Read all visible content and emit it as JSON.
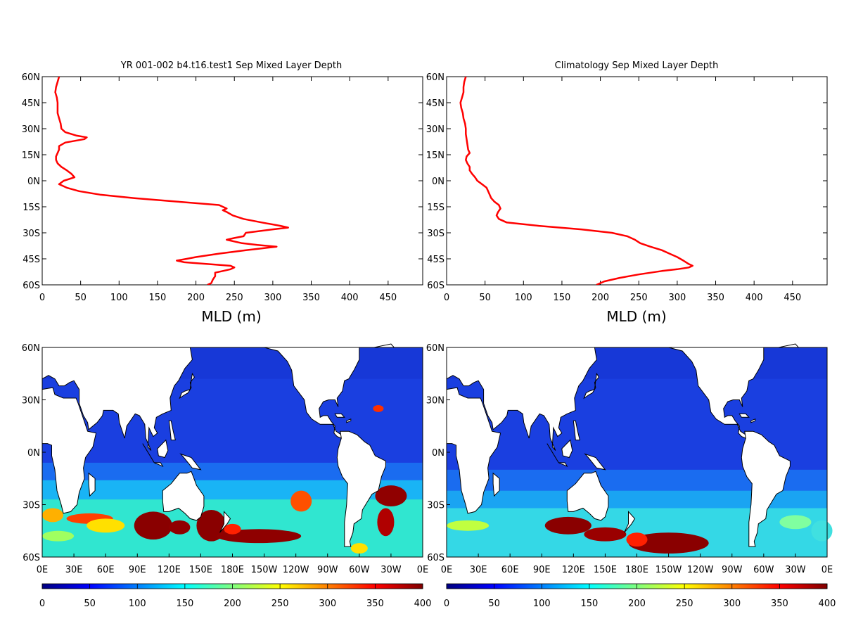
{
  "chart_data": [
    {
      "type": "line",
      "title": "YR 001-002 b4.t16.test1 Sep Mixed Layer Depth",
      "xlabel": "MLD (m)",
      "ylabel": "",
      "xlim": [
        0,
        495
      ],
      "ylim": [
        -60,
        60
      ],
      "xticks": [
        "0",
        "50",
        "100",
        "150",
        "200",
        "250",
        "300",
        "350",
        "400",
        "450"
      ],
      "yticks": [
        "60N",
        "45N",
        "30N",
        "15N",
        "0N",
        "15S",
        "30S",
        "45S",
        "60S"
      ],
      "line_color": "#ff0000",
      "series": [
        {
          "lat": [
            60,
            57,
            54,
            51,
            48,
            45,
            42,
            39,
            36,
            33,
            30,
            28,
            26,
            25,
            24,
            22,
            20,
            18,
            16,
            14,
            12,
            10,
            8,
            6,
            4,
            2,
            0,
            -2,
            -4,
            -6,
            -8,
            -10,
            -12,
            -14,
            -16,
            -17,
            -18,
            -20,
            -22,
            -24,
            -26,
            -27,
            -28,
            -30,
            -32,
            -33,
            -34,
            -36,
            -37,
            -38,
            -39,
            -40,
            -42,
            -44,
            -45,
            -46,
            -47,
            -48,
            -49,
            -50,
            -51,
            -52,
            -53,
            -55,
            -57,
            -59,
            -60
          ],
          "mld": [
            22,
            20,
            18,
            17,
            19,
            20,
            20,
            20,
            22,
            24,
            25,
            30,
            45,
            58,
            55,
            30,
            22,
            22,
            20,
            18,
            18,
            20,
            25,
            32,
            38,
            42,
            28,
            22,
            32,
            48,
            75,
            120,
            175,
            230,
            240,
            235,
            240,
            248,
            262,
            285,
            310,
            320,
            300,
            265,
            262,
            250,
            240,
            260,
            280,
            305,
            285,
            265,
            230,
            200,
            188,
            175,
            185,
            215,
            245,
            250,
            245,
            235,
            225,
            225,
            222,
            220,
            215
          ]
        }
      ]
    },
    {
      "type": "line",
      "title": "Climatology Sep Mixed Layer Depth",
      "xlabel": "MLD (m)",
      "ylabel": "",
      "xlim": [
        0,
        495
      ],
      "ylim": [
        -60,
        60
      ],
      "xticks": [
        "0",
        "50",
        "100",
        "150",
        "200",
        "250",
        "300",
        "350",
        "400",
        "450"
      ],
      "yticks": [
        "60N",
        "45N",
        "30N",
        "15N",
        "0N",
        "15S",
        "30S",
        "45S",
        "60S"
      ],
      "line_color": "#ff0000",
      "series": [
        {
          "lat": [
            60,
            57,
            54,
            51,
            48,
            45,
            42,
            39,
            36,
            33,
            30,
            27,
            24,
            21,
            18,
            16,
            14,
            12,
            10,
            8,
            6,
            4,
            2,
            0,
            -2,
            -4,
            -6,
            -8,
            -10,
            -12,
            -14,
            -16,
            -18,
            -20,
            -22,
            -24,
            -26,
            -28,
            -30,
            -32,
            -34,
            -36,
            -38,
            -40,
            -42,
            -44,
            -46,
            -48,
            -49,
            -50,
            -51,
            -52,
            -54,
            -56,
            -58,
            -60
          ],
          "mld": [
            25,
            23,
            22,
            22,
            20,
            18,
            19,
            21,
            22,
            24,
            25,
            25,
            26,
            27,
            28,
            30,
            26,
            25,
            27,
            30,
            30,
            33,
            37,
            40,
            46,
            52,
            54,
            56,
            58,
            62,
            68,
            70,
            67,
            65,
            68,
            78,
            120,
            175,
            215,
            235,
            245,
            252,
            265,
            280,
            290,
            300,
            308,
            315,
            320,
            315,
            300,
            280,
            250,
            225,
            205,
            195
          ]
        }
      ]
    },
    {
      "type": "heatmap",
      "title": "",
      "xticks": [
        "0E",
        "30E",
        "60E",
        "90E",
        "120E",
        "150E",
        "180E",
        "150W",
        "120W",
        "90W",
        "60W",
        "30W",
        "0E"
      ],
      "yticks": [
        "60N",
        "30N",
        "0N",
        "30S",
        "60S"
      ],
      "xlim": [
        0,
        360
      ],
      "ylim": [
        -60,
        60
      ],
      "colorbar": {
        "min": 0,
        "max": 400,
        "ticks": [
          "0",
          "50",
          "100",
          "150",
          "200",
          "250",
          "300",
          "350",
          "400"
        ]
      },
      "colormap": [
        "#00007f",
        "#0000ff",
        "#007fff",
        "#00ffff",
        "#7fff7f",
        "#ffff00",
        "#ff7f00",
        "#ff0000",
        "#7f0000"
      ]
    },
    {
      "type": "heatmap",
      "title": "",
      "xticks": [
        "0E",
        "30E",
        "60E",
        "90E",
        "120E",
        "150E",
        "180E",
        "150W",
        "120W",
        "90W",
        "60W",
        "30W",
        "0E"
      ],
      "yticks": [
        "60N",
        "30N",
        "0N",
        "30S",
        "60S"
      ],
      "xlim": [
        0,
        360
      ],
      "ylim": [
        -60,
        60
      ],
      "colorbar": {
        "min": 0,
        "max": 400,
        "ticks": [
          "0",
          "50",
          "100",
          "150",
          "200",
          "250",
          "300",
          "350",
          "400"
        ]
      },
      "colormap": [
        "#00007f",
        "#0000ff",
        "#007fff",
        "#00ffff",
        "#7fff7f",
        "#ffff00",
        "#ff7f00",
        "#ff0000",
        "#7f0000"
      ]
    }
  ]
}
